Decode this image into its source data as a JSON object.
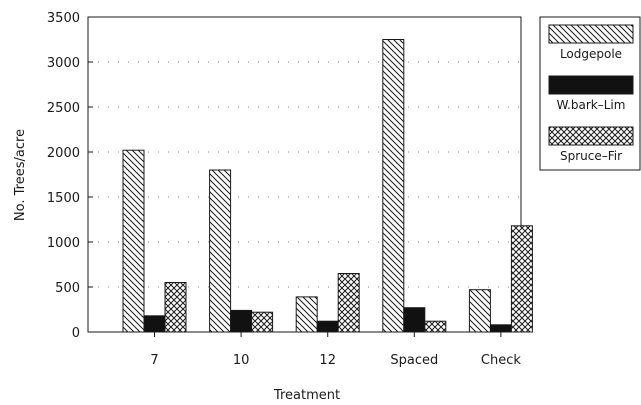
{
  "chart_data": {
    "type": "bar",
    "xlabel": "Treatment",
    "ylabel": "No. Trees/acre",
    "ylim": [
      0,
      3500
    ],
    "yticks": [
      0,
      500,
      1000,
      1500,
      2000,
      2500,
      3000,
      3500
    ],
    "categories": [
      "7",
      "10",
      "12",
      "Spaced",
      "Check"
    ],
    "series": [
      {
        "name": "Lodgepole",
        "values": [
          2020,
          1800,
          390,
          3250,
          470
        ],
        "pattern": "diagonal-hatch"
      },
      {
        "name": "W.bark–Lim",
        "values": [
          180,
          240,
          120,
          270,
          80
        ],
        "pattern": "solid-black"
      },
      {
        "name": "Spruce–Fir",
        "values": [
          550,
          220,
          650,
          120,
          1180
        ],
        "pattern": "crosshatch"
      }
    ],
    "grid": "dotted",
    "legend_position": "right"
  }
}
